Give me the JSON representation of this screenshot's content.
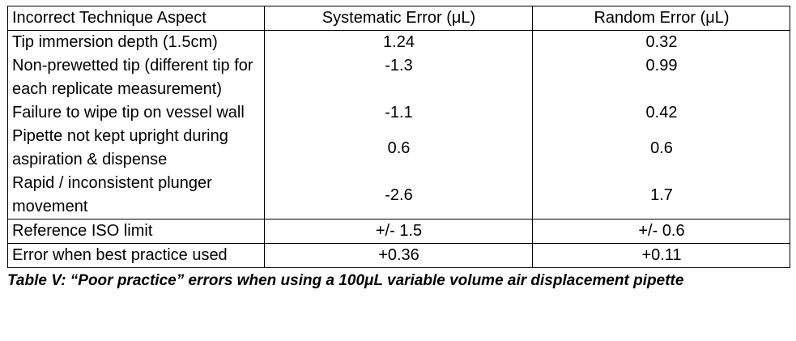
{
  "table": {
    "headers": [
      "Incorrect Technique Aspect",
      "Systematic Error (μL)",
      "Random Error (μL)"
    ],
    "rows": [
      {
        "aspect": "Tip immersion depth (1.5cm)",
        "systematic": "1.24",
        "random": "0.32"
      },
      {
        "aspect": "Non-prewetted tip (different tip for each replicate measurement)",
        "systematic": "-1.3",
        "random": "0.99"
      },
      {
        "aspect": "Failure to wipe tip on vessel wall",
        "systematic": "-1.1",
        "random": "0.42"
      },
      {
        "aspect": "Pipette not kept upright during aspiration & dispense",
        "systematic": "0.6",
        "random": "0.6"
      },
      {
        "aspect": "Rapid / inconsistent plunger movement",
        "systematic": "-2.6",
        "random": "1.7"
      }
    ],
    "reference": {
      "aspect": "Reference ISO limit",
      "systematic": "+/- 1.5",
      "random": "+/- 0.6"
    },
    "best_practice": {
      "aspect": "Error when best practice used",
      "systematic": "+0.36",
      "random": "+0.11"
    }
  },
  "caption": "Table V: “Poor practice” errors when using a 100μL variable volume air displacement pipette"
}
